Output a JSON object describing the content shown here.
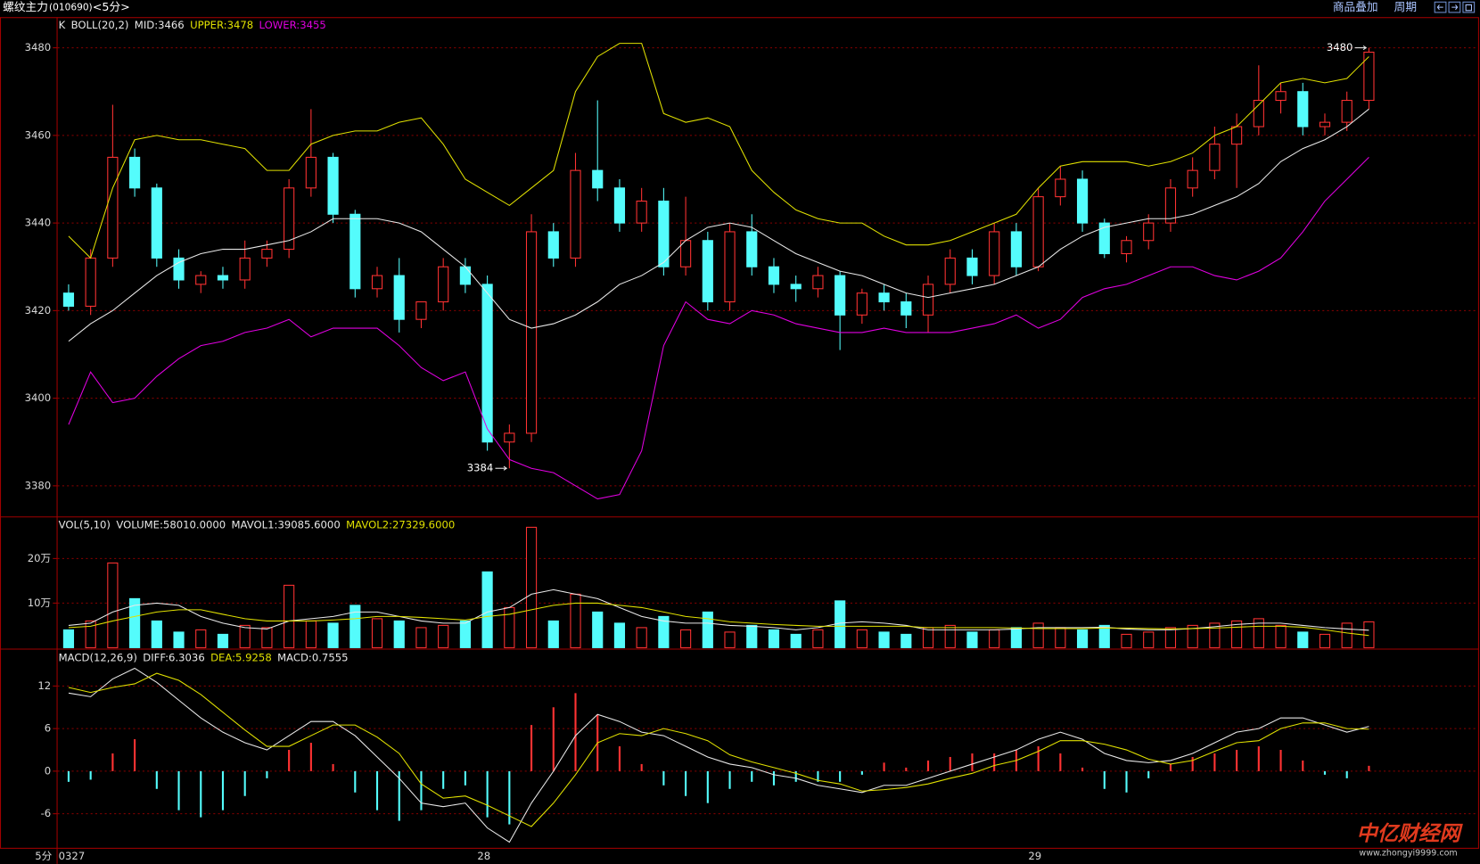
{
  "header": {
    "title": "螺纹主力",
    "code": "(010690)",
    "period": "<5分>",
    "buttons": [
      "商品叠加",
      "周期"
    ]
  },
  "footer": {
    "period_label": "5分"
  },
  "watermark": {
    "text": "中亿财经网",
    "url": "www.zhongyi9999.com"
  },
  "chart_data": [
    {
      "type": "candlestick",
      "title": "K",
      "indicator": "BOLL(20,2)",
      "open": [
        3424,
        3421,
        3432,
        3455,
        3448,
        3432,
        3426,
        3428,
        3427,
        3432,
        3434,
        3448,
        3455,
        3442,
        3425,
        3428,
        3418,
        3422,
        3430,
        3426,
        3390,
        3392,
        3438,
        3432,
        3452,
        3448,
        3440,
        3445,
        3430,
        3436,
        3422,
        3438,
        3430,
        3426,
        3425,
        3428,
        3419,
        3424,
        3422,
        3419,
        3426,
        3432,
        3428,
        3438,
        3430,
        3446,
        3450,
        3440,
        3433,
        3436,
        3440,
        3448,
        3452,
        3458,
        3462,
        3468,
        3470,
        3462,
        3463,
        3468
      ],
      "high": [
        3426,
        3434,
        3467,
        3457,
        3449,
        3434,
        3429,
        3430,
        3436,
        3436,
        3450,
        3466,
        3456,
        3443,
        3430,
        3432,
        3422,
        3432,
        3432,
        3428,
        3394,
        3442,
        3440,
        3456,
        3468,
        3450,
        3448,
        3448,
        3446,
        3438,
        3440,
        3442,
        3432,
        3428,
        3430,
        3429,
        3425,
        3426,
        3424,
        3428,
        3434,
        3434,
        3440,
        3440,
        3448,
        3453,
        3452,
        3441,
        3437,
        3442,
        3450,
        3455,
        3462,
        3465,
        3476,
        3472,
        3472,
        3465,
        3470,
        3480
      ],
      "low": [
        3420,
        3419,
        3430,
        3446,
        3430,
        3425,
        3424,
        3425,
        3425,
        3430,
        3432,
        3446,
        3440,
        3423,
        3423,
        3415,
        3416,
        3420,
        3424,
        3388,
        3384,
        3390,
        3430,
        3430,
        3445,
        3438,
        3438,
        3428,
        3428,
        3420,
        3420,
        3428,
        3424,
        3422,
        3423,
        3411,
        3417,
        3420,
        3416,
        3415,
        3424,
        3426,
        3426,
        3428,
        3429,
        3444,
        3438,
        3432,
        3431,
        3434,
        3438,
        3446,
        3450,
        3448,
        3460,
        3465,
        3460,
        3460,
        3461,
        3466
      ],
      "close": [
        3421,
        3432,
        3455,
        3448,
        3432,
        3427,
        3428,
        3427,
        3432,
        3434,
        3448,
        3455,
        3442,
        3425,
        3428,
        3418,
        3422,
        3430,
        3426,
        3390,
        3392,
        3438,
        3432,
        3452,
        3448,
        3440,
        3445,
        3430,
        3436,
        3422,
        3438,
        3430,
        3426,
        3425,
        3428,
        3419,
        3424,
        3422,
        3419,
        3426,
        3432,
        3428,
        3438,
        3430,
        3446,
        3450,
        3440,
        3433,
        3436,
        3440,
        3448,
        3452,
        3458,
        3462,
        3468,
        3470,
        3462,
        3463,
        3468,
        3479
      ],
      "up_color": "#ff3232",
      "down_color": "#54fcfc",
      "series": [
        {
          "name": "MID:3466",
          "color": "#e8e8e8",
          "values": [
            3413,
            3417,
            3420,
            3424,
            3428,
            3431,
            3433,
            3434,
            3434,
            3435,
            3436,
            3438,
            3441,
            3441,
            3441,
            3440,
            3438,
            3434,
            3430,
            3424,
            3418,
            3416,
            3417,
            3419,
            3422,
            3426,
            3428,
            3431,
            3436,
            3439,
            3440,
            3439,
            3436,
            3433,
            3431,
            3429,
            3428,
            3426,
            3424,
            3423,
            3424,
            3425,
            3426,
            3428,
            3430,
            3434,
            3437,
            3439,
            3440,
            3441,
            3441,
            3442,
            3444,
            3446,
            3449,
            3454,
            3457,
            3459,
            3462,
            3466
          ]
        },
        {
          "name": "UPPER:3478",
          "color": "#e0e000",
          "values": [
            3437,
            3432,
            3448,
            3459,
            3460,
            3459,
            3459,
            3458,
            3457,
            3452,
            3452,
            3458,
            3460,
            3461,
            3461,
            3463,
            3464,
            3458,
            3450,
            3447,
            3444,
            3448,
            3452,
            3470,
            3478,
            3481,
            3481,
            3465,
            3463,
            3464,
            3462,
            3452,
            3447,
            3443,
            3441,
            3440,
            3440,
            3437,
            3435,
            3435,
            3436,
            3438,
            3440,
            3442,
            3448,
            3453,
            3454,
            3454,
            3454,
            3453,
            3454,
            3456,
            3460,
            3462,
            3467,
            3472,
            3473,
            3472,
            3473,
            3478
          ]
        },
        {
          "name": "LOWER:3455",
          "color": "#e000e0",
          "values": [
            3394,
            3406,
            3399,
            3400,
            3405,
            3409,
            3412,
            3413,
            3415,
            3416,
            3418,
            3414,
            3416,
            3416,
            3416,
            3412,
            3407,
            3404,
            3406,
            3393,
            3386,
            3384,
            3383,
            3380,
            3377,
            3378,
            3388,
            3412,
            3422,
            3418,
            3417,
            3420,
            3419,
            3417,
            3416,
            3415,
            3415,
            3416,
            3415,
            3415,
            3415,
            3416,
            3417,
            3419,
            3416,
            3418,
            3423,
            3425,
            3426,
            3428,
            3430,
            3430,
            3428,
            3427,
            3429,
            3432,
            3438,
            3445,
            3450,
            3455
          ]
        }
      ],
      "ylim": [
        3373,
        3487
      ],
      "yticks": [
        3380,
        3400,
        3420,
        3440,
        3460,
        3480
      ],
      "grid": true,
      "max_label": 3480,
      "min_label": 3384
    },
    {
      "type": "bar",
      "title": "VOL(5,10)",
      "volume_label": "VOLUME:58010.0000",
      "values": [
        40000,
        60000,
        190000,
        110000,
        60000,
        35000,
        40000,
        30000,
        50000,
        45000,
        140000,
        60000,
        55000,
        95000,
        65000,
        60000,
        45000,
        50000,
        60000,
        170000,
        90000,
        270000,
        60000,
        120000,
        80000,
        55000,
        45000,
        70000,
        40000,
        80000,
        35000,
        50000,
        40000,
        30000,
        40000,
        105000,
        40000,
        35000,
        30000,
        45000,
        50000,
        35000,
        40000,
        45000,
        55000,
        45000,
        40000,
        50000,
        30000,
        35000,
        45000,
        50000,
        55000,
        60000,
        65000,
        50000,
        35000,
        30000,
        55000,
        58010
      ],
      "up_color": "#ff3232",
      "down_color": "#54fcfc",
      "series": [
        {
          "name": "MAVOL1:39085.6000",
          "color": "#e8e8e8",
          "values": [
            50000,
            55000,
            80000,
            95000,
            100000,
            95000,
            70000,
            55000,
            45000,
            42000,
            60000,
            65000,
            70000,
            80000,
            80000,
            70000,
            60000,
            55000,
            55000,
            80000,
            90000,
            120000,
            130000,
            120000,
            110000,
            90000,
            70000,
            60000,
            55000,
            55000,
            50000,
            48000,
            45000,
            40000,
            45000,
            55000,
            58000,
            55000,
            50000,
            40000,
            40000,
            40000,
            40000,
            42000,
            45000,
            45000,
            45000,
            46000,
            42000,
            40000,
            40000,
            43000,
            47000,
            52000,
            55000,
            55000,
            50000,
            45000,
            42000,
            39085.6
          ]
        },
        {
          "name": "MAVOL2:27329.6000",
          "color": "#e0e000",
          "values": [
            45000,
            48000,
            60000,
            70000,
            80000,
            85000,
            85000,
            75000,
            65000,
            60000,
            60000,
            60000,
            62000,
            65000,
            70000,
            70000,
            68000,
            65000,
            62000,
            70000,
            75000,
            85000,
            95000,
            100000,
            100000,
            95000,
            90000,
            80000,
            70000,
            65000,
            58000,
            55000,
            52000,
            50000,
            48000,
            48000,
            48000,
            48000,
            48000,
            45000,
            45000,
            45000,
            45000,
            44000,
            43000,
            43000,
            43000,
            44000,
            44000,
            43000,
            42000,
            43000,
            44000,
            46000,
            48000,
            48000,
            46000,
            40000,
            33000,
            27329.6
          ]
        }
      ],
      "ylim": [
        0,
        290000
      ],
      "yticks": [
        {
          "value": 100000,
          "label": "10万"
        },
        {
          "value": 200000,
          "label": "20万"
        }
      ],
      "grid": true
    },
    {
      "type": "macd",
      "title": "MACD(12,26,9)",
      "value_name": "MACD:0.7555",
      "categories": [
        "0327",
        null,
        null,
        null,
        null,
        null,
        null,
        null,
        null,
        null,
        null,
        null,
        null,
        null,
        null,
        null,
        null,
        null,
        null,
        "28",
        null,
        null,
        null,
        null,
        null,
        null,
        null,
        null,
        null,
        null,
        null,
        null,
        null,
        null,
        null,
        null,
        null,
        null,
        null,
        null,
        null,
        null,
        null,
        null,
        "29",
        null,
        null,
        null,
        null,
        null,
        null,
        null,
        null,
        null,
        null,
        null,
        null,
        null,
        null,
        null
      ],
      "values": [
        -1.5,
        -1.2,
        2.5,
        4.5,
        -2.5,
        -5.5,
        -6.5,
        -5.5,
        -3.5,
        -1,
        3,
        4,
        1,
        -3,
        -5.5,
        -7,
        -5.5,
        -2.5,
        -2,
        -6.5,
        -7.5,
        6.5,
        9,
        11,
        8,
        3.5,
        1,
        -2,
        -3.5,
        -4.5,
        -2.5,
        -1.5,
        -2,
        -1.5,
        -1.5,
        -1.5,
        -0.5,
        1.2,
        0.5,
        1.5,
        2,
        2.5,
        2.5,
        3,
        3.5,
        2.5,
        0.5,
        -2.5,
        -3,
        -1,
        1,
        2,
        2.5,
        3,
        3.5,
        3,
        1.5,
        -0.5,
        -1,
        0.7555
      ],
      "up_color": "#ff3232",
      "down_color": "#54fcfc",
      "series": [
        {
          "name": "DIFF:6.3036",
          "color": "#e8e8e8",
          "values": [
            11,
            10.5,
            13,
            14.5,
            12.5,
            10,
            7.5,
            5.5,
            4,
            3,
            5,
            7,
            7,
            5,
            2,
            -1,
            -4.5,
            -5,
            -4.5,
            -8,
            -10,
            -4.5,
            0,
            5,
            8,
            7,
            5.5,
            5,
            3.5,
            2,
            1,
            0.5,
            -0.5,
            -1,
            -2,
            -2.5,
            -3,
            -2,
            -2,
            -1,
            0,
            1,
            2,
            3,
            4.5,
            5.5,
            4.5,
            2.5,
            1.5,
            1.2,
            1.5,
            2.5,
            4,
            5.5,
            6,
            7.5,
            7.5,
            6.5,
            5.5,
            6.3036
          ]
        },
        {
          "name": "DEA:5.9258",
          "color": "#e0e000",
          "values": [
            11.8,
            11.1,
            11.8,
            12.3,
            13.8,
            12.8,
            10.8,
            8.3,
            5.8,
            3.5,
            3.5,
            5,
            6.5,
            6.5,
            4.8,
            2.5,
            -1.8,
            -3.8,
            -3.5,
            -4.8,
            -6.3,
            -7.8,
            -4.5,
            -0.5,
            4,
            5.3,
            5,
            6,
            5.3,
            4.3,
            2.3,
            1.3,
            0.5,
            -0.3,
            -1.3,
            -1.8,
            -2.8,
            -2.6,
            -2.3,
            -1.8,
            -1,
            -0.3,
            0.8,
            1.5,
            2.8,
            4.3,
            4.3,
            3.8,
            3,
            1.7,
            1,
            1.5,
            2.8,
            4,
            4.3,
            6,
            6.8,
            6.8,
            6,
            5.9258
          ]
        }
      ],
      "ylim": [
        -10.8,
        17
      ],
      "yticks": [
        -6,
        0,
        6,
        12
      ],
      "grid": true
    }
  ]
}
